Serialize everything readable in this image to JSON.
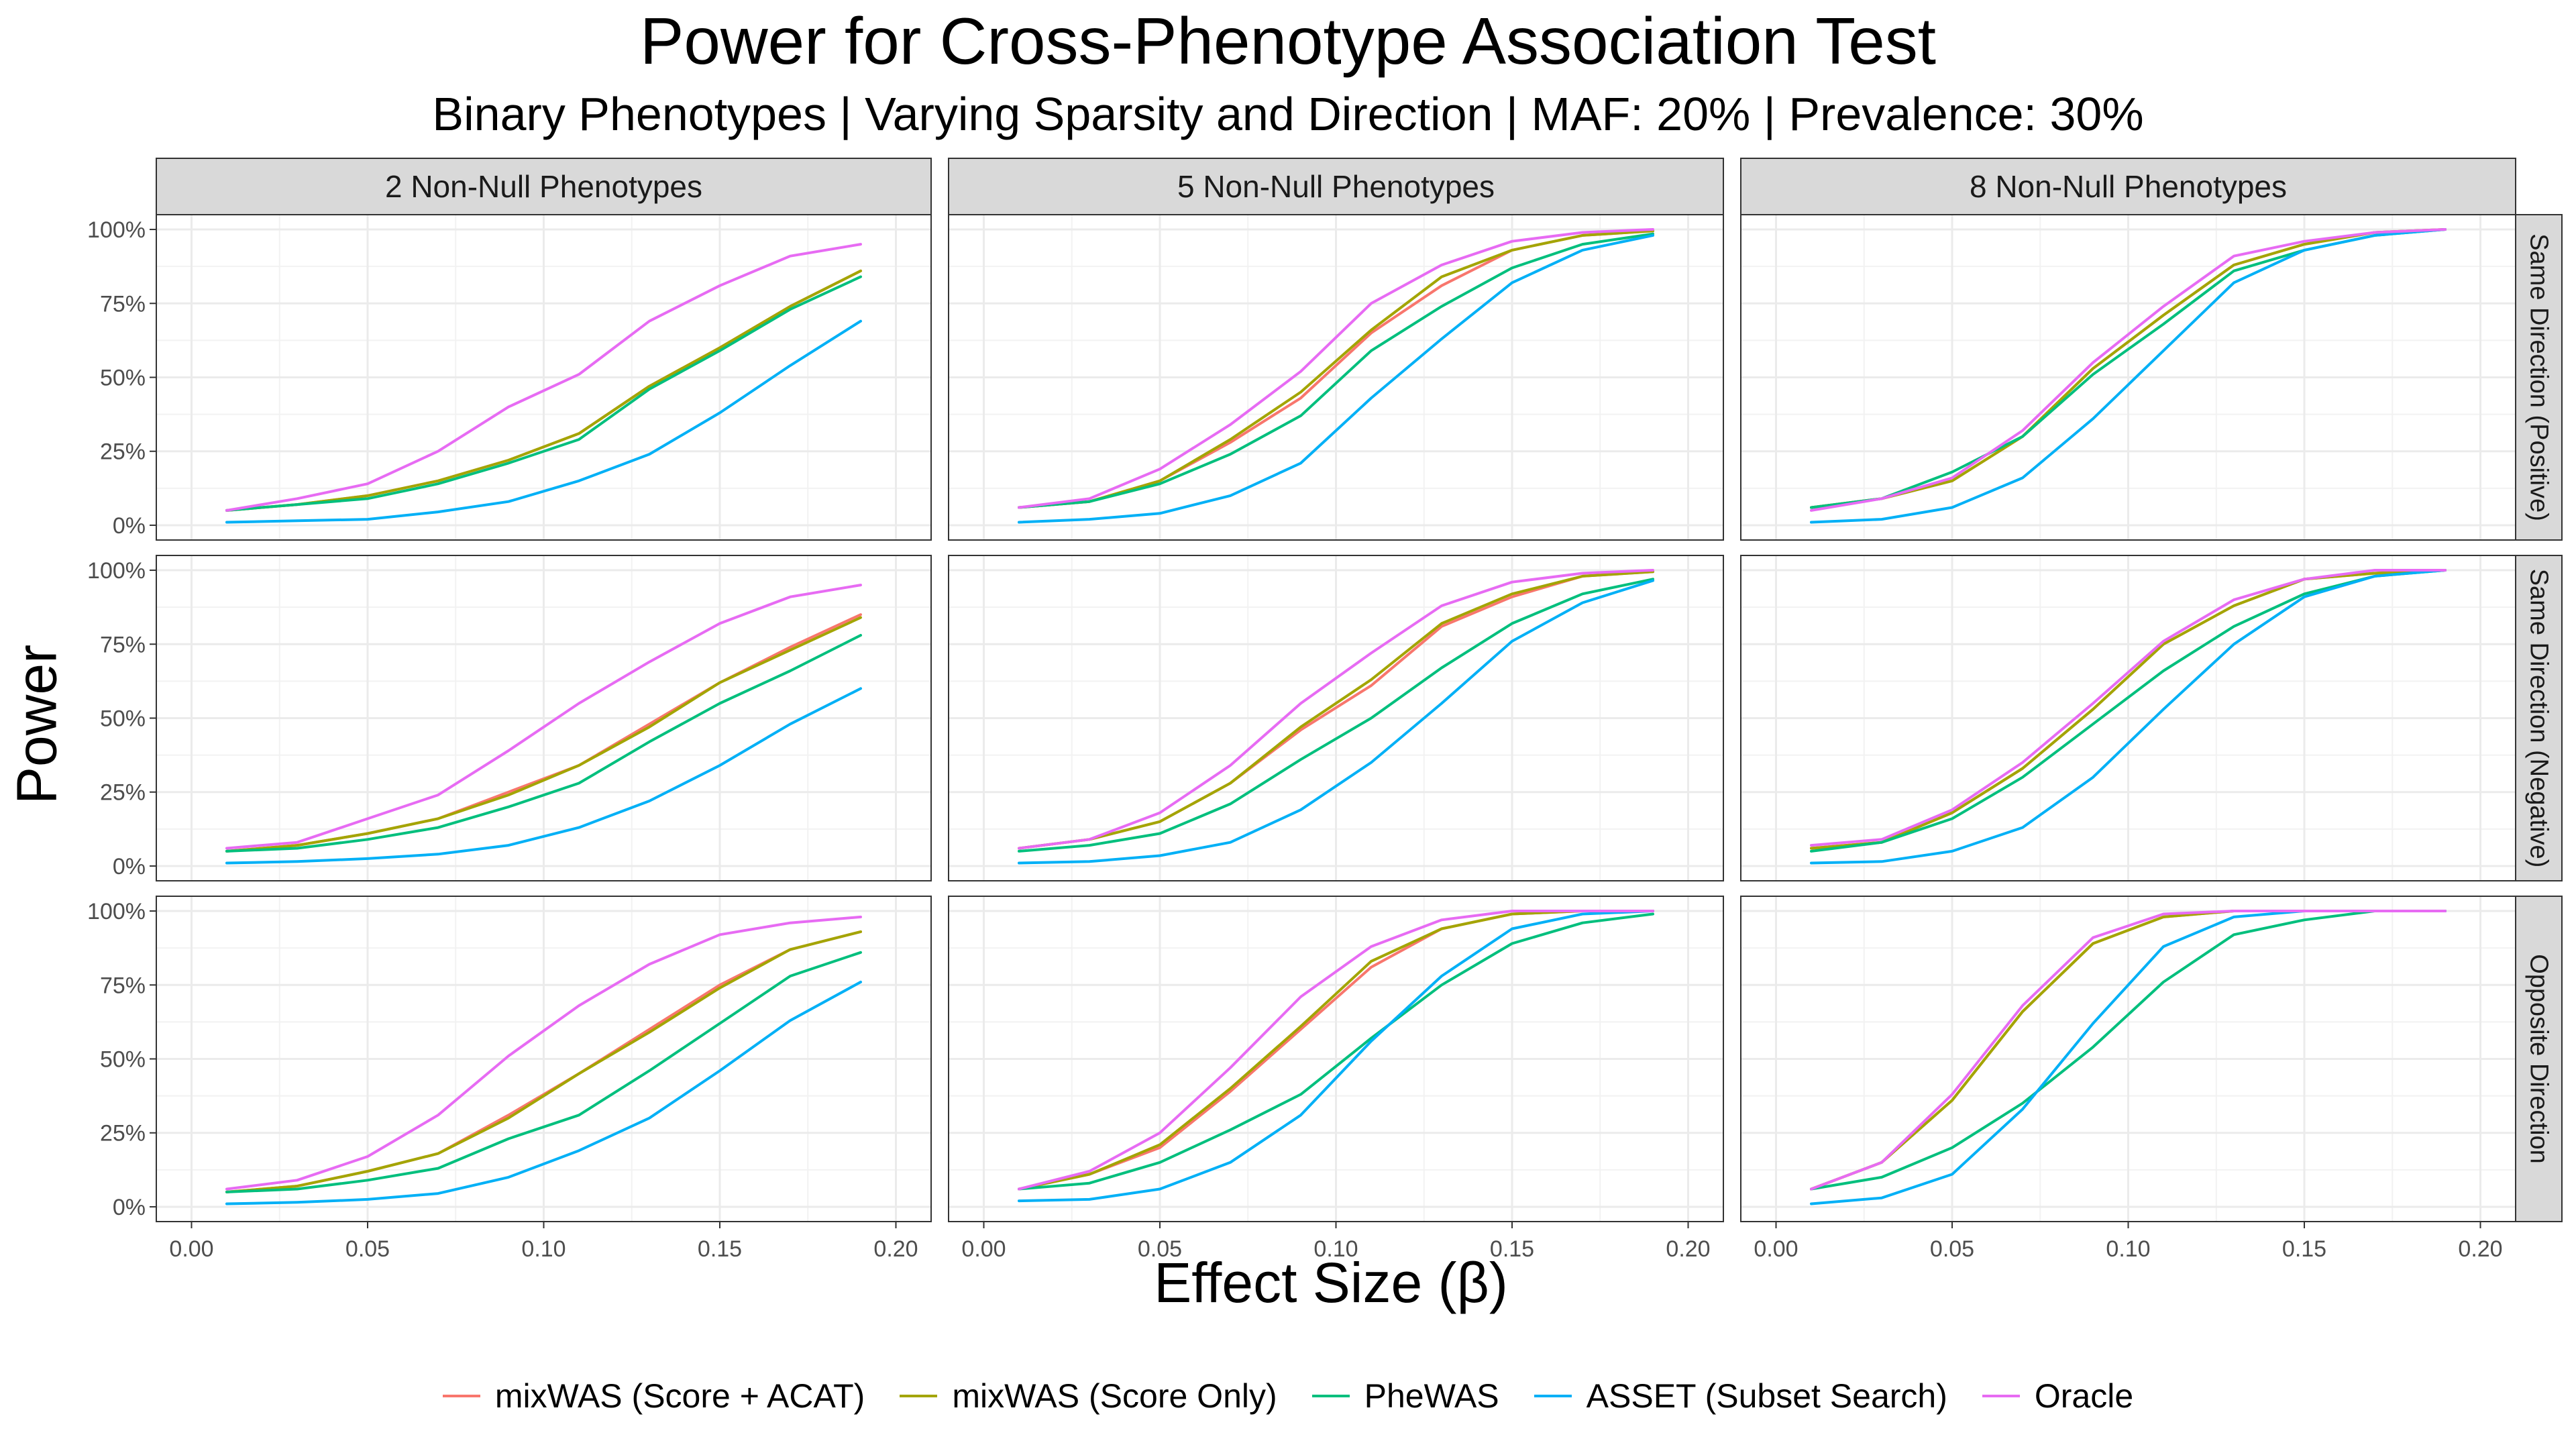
{
  "title": "Power for Cross-Phenotype Association Test",
  "subtitle": "Binary Phenotypes | Varying Sparsity and Direction | MAF: 20% | Prevalence: 30%",
  "chart_data": {
    "type": "line",
    "title": "Power for Cross-Phenotype Association Test",
    "subtitle": "Binary Phenotypes | Varying Sparsity and Direction | MAF: 20% | Prevalence: 30%",
    "xlabel": "Effect Size (β)",
    "ylabel": "Power",
    "xlim": [
      -0.01,
      0.21
    ],
    "ylim": [
      -0.05,
      1.05
    ],
    "x_ticks": [
      "0.00",
      "0.05",
      "0.10",
      "0.15",
      "0.20"
    ],
    "x_tick_values": [
      0,
      0.05,
      0.1,
      0.15,
      0.2
    ],
    "y_ticks": [
      "0%",
      "25%",
      "50%",
      "75%",
      "100%"
    ],
    "y_tick_values": [
      0,
      0.25,
      0.5,
      0.75,
      1
    ],
    "grid": true,
    "legend_position": "bottom",
    "col_facets": [
      "2 Non-Null Phenotypes",
      "5 Non-Null Phenotypes",
      "8 Non-Null Phenotypes"
    ],
    "row_facets": [
      "Same Direction (Positive)",
      "Same Direction (Negative)",
      "Opposite Direction"
    ],
    "series_names": [
      "mixWAS (Score + ACAT)",
      "mixWAS (Score Only)",
      "PheWAS",
      "ASSET (Subset Search)",
      "Oracle"
    ],
    "series_colors": [
      "#F8766D",
      "#A3A500",
      "#00BF7D",
      "#00B0F6",
      "#E76BF3"
    ],
    "x": [
      0.01,
      0.03,
      0.05,
      0.07,
      0.09,
      0.11,
      0.13,
      0.15,
      0.17,
      0.19
    ],
    "panels": [
      {
        "row": 0,
        "col": 0,
        "series": [
          [
            0.05,
            0.07,
            0.1,
            0.15,
            0.22,
            0.31,
            0.47,
            0.6,
            0.74,
            0.86
          ],
          [
            0.05,
            0.07,
            0.1,
            0.15,
            0.22,
            0.31,
            0.47,
            0.6,
            0.74,
            0.86
          ],
          [
            0.05,
            0.07,
            0.09,
            0.14,
            0.21,
            0.29,
            0.46,
            0.59,
            0.73,
            0.84
          ],
          [
            0.01,
            0.015,
            0.02,
            0.045,
            0.08,
            0.15,
            0.24,
            0.38,
            0.54,
            0.69
          ],
          [
            0.05,
            0.09,
            0.14,
            0.25,
            0.4,
            0.51,
            0.69,
            0.81,
            0.91,
            0.95
          ]
        ]
      },
      {
        "row": 0,
        "col": 1,
        "series": [
          [
            0.06,
            0.08,
            0.15,
            0.28,
            0.43,
            0.65,
            0.81,
            0.93,
            0.98,
            0.995
          ],
          [
            0.06,
            0.08,
            0.15,
            0.29,
            0.45,
            0.66,
            0.84,
            0.93,
            0.98,
            0.995
          ],
          [
            0.06,
            0.08,
            0.14,
            0.24,
            0.37,
            0.59,
            0.74,
            0.87,
            0.95,
            0.985
          ],
          [
            0.01,
            0.02,
            0.04,
            0.1,
            0.21,
            0.43,
            0.63,
            0.82,
            0.93,
            0.98
          ],
          [
            0.06,
            0.09,
            0.19,
            0.34,
            0.52,
            0.75,
            0.88,
            0.96,
            0.99,
            1.0
          ]
        ]
      },
      {
        "row": 0,
        "col": 2,
        "series": [
          [
            0.06,
            0.09,
            0.15,
            0.3,
            0.53,
            0.71,
            0.88,
            0.95,
            0.99,
            1.0
          ],
          [
            0.06,
            0.09,
            0.15,
            0.3,
            0.53,
            0.71,
            0.88,
            0.95,
            0.99,
            1.0
          ],
          [
            0.06,
            0.09,
            0.18,
            0.3,
            0.51,
            0.68,
            0.86,
            0.93,
            0.98,
            1.0
          ],
          [
            0.01,
            0.02,
            0.06,
            0.16,
            0.36,
            0.59,
            0.82,
            0.93,
            0.98,
            1.0
          ],
          [
            0.05,
            0.09,
            0.16,
            0.32,
            0.55,
            0.74,
            0.91,
            0.96,
            0.99,
            1.0
          ]
        ]
      },
      {
        "row": 1,
        "col": 0,
        "series": [
          [
            0.05,
            0.07,
            0.11,
            0.16,
            0.25,
            0.34,
            0.48,
            0.62,
            0.74,
            0.85
          ],
          [
            0.05,
            0.07,
            0.11,
            0.16,
            0.24,
            0.34,
            0.47,
            0.62,
            0.73,
            0.84
          ],
          [
            0.05,
            0.06,
            0.09,
            0.13,
            0.2,
            0.28,
            0.42,
            0.55,
            0.66,
            0.78
          ],
          [
            0.01,
            0.015,
            0.025,
            0.04,
            0.07,
            0.13,
            0.22,
            0.34,
            0.48,
            0.6
          ],
          [
            0.06,
            0.08,
            0.16,
            0.24,
            0.39,
            0.55,
            0.69,
            0.82,
            0.91,
            0.95
          ]
        ]
      },
      {
        "row": 1,
        "col": 1,
        "series": [
          [
            0.06,
            0.09,
            0.15,
            0.28,
            0.46,
            0.61,
            0.81,
            0.91,
            0.98,
            0.995
          ],
          [
            0.06,
            0.09,
            0.15,
            0.28,
            0.47,
            0.63,
            0.82,
            0.92,
            0.98,
            0.995
          ],
          [
            0.05,
            0.07,
            0.11,
            0.21,
            0.36,
            0.5,
            0.67,
            0.82,
            0.92,
            0.97
          ],
          [
            0.01,
            0.015,
            0.035,
            0.08,
            0.19,
            0.35,
            0.55,
            0.76,
            0.89,
            0.965
          ],
          [
            0.06,
            0.09,
            0.18,
            0.34,
            0.55,
            0.72,
            0.88,
            0.96,
            0.99,
            1.0
          ]
        ]
      },
      {
        "row": 1,
        "col": 2,
        "series": [
          [
            0.06,
            0.08,
            0.18,
            0.33,
            0.53,
            0.75,
            0.88,
            0.97,
            0.99,
            1.0
          ],
          [
            0.06,
            0.08,
            0.18,
            0.33,
            0.53,
            0.75,
            0.88,
            0.97,
            0.99,
            1.0
          ],
          [
            0.05,
            0.08,
            0.16,
            0.3,
            0.48,
            0.66,
            0.81,
            0.92,
            0.98,
            1.0
          ],
          [
            0.01,
            0.015,
            0.05,
            0.13,
            0.3,
            0.53,
            0.75,
            0.91,
            0.98,
            1.0
          ],
          [
            0.07,
            0.09,
            0.19,
            0.35,
            0.55,
            0.76,
            0.9,
            0.97,
            1.0,
            1.0
          ]
        ]
      },
      {
        "row": 2,
        "col": 0,
        "series": [
          [
            0.05,
            0.07,
            0.12,
            0.18,
            0.31,
            0.45,
            0.6,
            0.75,
            0.87,
            0.93
          ],
          [
            0.05,
            0.07,
            0.12,
            0.18,
            0.3,
            0.45,
            0.59,
            0.74,
            0.87,
            0.93
          ],
          [
            0.05,
            0.06,
            0.09,
            0.13,
            0.23,
            0.31,
            0.46,
            0.62,
            0.78,
            0.86
          ],
          [
            0.01,
            0.015,
            0.025,
            0.045,
            0.1,
            0.19,
            0.3,
            0.46,
            0.63,
            0.76
          ],
          [
            0.06,
            0.09,
            0.17,
            0.31,
            0.51,
            0.68,
            0.82,
            0.92,
            0.96,
            0.98
          ]
        ]
      },
      {
        "row": 2,
        "col": 1,
        "series": [
          [
            0.06,
            0.11,
            0.2,
            0.39,
            0.6,
            0.81,
            0.94,
            0.99,
            1.0,
            1.0
          ],
          [
            0.06,
            0.11,
            0.21,
            0.4,
            0.61,
            0.83,
            0.94,
            0.99,
            1.0,
            1.0
          ],
          [
            0.06,
            0.08,
            0.15,
            0.26,
            0.38,
            0.57,
            0.75,
            0.89,
            0.96,
            0.99
          ],
          [
            0.02,
            0.025,
            0.06,
            0.15,
            0.31,
            0.56,
            0.78,
            0.94,
            0.99,
            1.0
          ],
          [
            0.06,
            0.12,
            0.25,
            0.47,
            0.71,
            0.88,
            0.97,
            1.0,
            1.0,
            1.0
          ]
        ]
      },
      {
        "row": 2,
        "col": 2,
        "series": [
          [
            0.06,
            0.15,
            0.36,
            0.66,
            0.89,
            0.98,
            1.0,
            1.0,
            1.0,
            1.0
          ],
          [
            0.06,
            0.15,
            0.36,
            0.66,
            0.89,
            0.98,
            1.0,
            1.0,
            1.0,
            1.0
          ],
          [
            0.06,
            0.1,
            0.2,
            0.35,
            0.54,
            0.76,
            0.92,
            0.97,
            1.0,
            1.0
          ],
          [
            0.01,
            0.03,
            0.11,
            0.33,
            0.62,
            0.88,
            0.98,
            1.0,
            1.0,
            1.0
          ],
          [
            0.06,
            0.15,
            0.38,
            0.68,
            0.91,
            0.99,
            1.0,
            1.0,
            1.0,
            1.0
          ]
        ]
      }
    ]
  }
}
